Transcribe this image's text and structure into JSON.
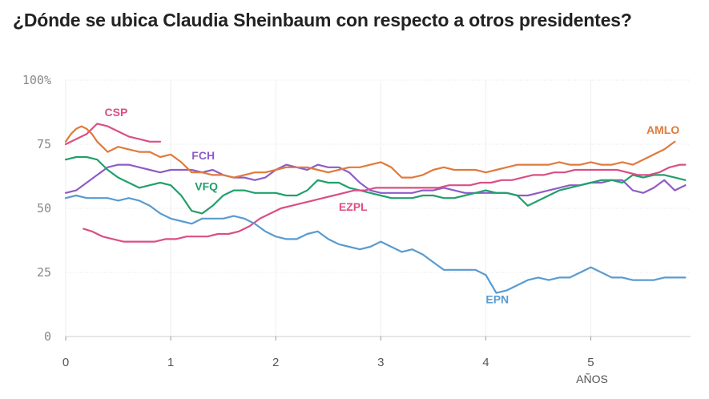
{
  "chart_data": {
    "type": "line",
    "title": "¿Dónde se ubica Claudia Sheinbaum con respecto a otros presidentes?",
    "xlabel": "AÑOS",
    "ylabel": "",
    "xlim": [
      0,
      5.95
    ],
    "ylim": [
      0,
      100
    ],
    "xticks": [
      0,
      1,
      2,
      3,
      4,
      5
    ],
    "yticks": [
      0,
      25,
      50,
      75,
      100
    ],
    "ytick_labels": [
      "0",
      "25",
      "50",
      "75",
      "100%"
    ],
    "series": [
      {
        "name": "FCH",
        "color": "#8e5cc6",
        "label_at": [
          1.2,
          69
        ],
        "x": [
          0,
          0.1,
          0.2,
          0.3,
          0.4,
          0.5,
          0.6,
          0.7,
          0.8,
          0.9,
          1.0,
          1.1,
          1.2,
          1.3,
          1.4,
          1.5,
          1.6,
          1.7,
          1.8,
          1.9,
          2.0,
          2.1,
          2.2,
          2.3,
          2.4,
          2.5,
          2.6,
          2.7,
          2.8,
          2.9,
          3.0,
          3.1,
          3.2,
          3.3,
          3.4,
          3.5,
          3.6,
          3.7,
          3.8,
          3.9,
          4.0,
          4.1,
          4.2,
          4.3,
          4.4,
          4.5,
          4.6,
          4.7,
          4.8,
          4.9,
          5.0,
          5.1,
          5.2,
          5.3,
          5.4,
          5.5,
          5.6,
          5.7,
          5.8,
          5.9
        ],
        "values": [
          56,
          57,
          60,
          63,
          66,
          67,
          67,
          66,
          65,
          64,
          65,
          65,
          65,
          64,
          65,
          63,
          62,
          62,
          61,
          62,
          65,
          67,
          66,
          65,
          67,
          66,
          66,
          64,
          60,
          57,
          56,
          56,
          56,
          56,
          57,
          57,
          58,
          57,
          56,
          56,
          56,
          56,
          56,
          55,
          55,
          56,
          57,
          58,
          59,
          59,
          60,
          60,
          61,
          61,
          57,
          56,
          58,
          61,
          57,
          59
        ]
      },
      {
        "name": "VFQ",
        "color": "#20a06a",
        "label_at": [
          1.23,
          57
        ],
        "x": [
          0,
          0.1,
          0.2,
          0.3,
          0.4,
          0.5,
          0.6,
          0.7,
          0.8,
          0.9,
          1.0,
          1.1,
          1.2,
          1.3,
          1.4,
          1.5,
          1.6,
          1.7,
          1.8,
          1.9,
          2.0,
          2.1,
          2.2,
          2.3,
          2.4,
          2.5,
          2.6,
          2.7,
          2.8,
          2.9,
          3.0,
          3.1,
          3.2,
          3.3,
          3.4,
          3.5,
          3.6,
          3.7,
          3.8,
          3.9,
          4.0,
          4.1,
          4.2,
          4.3,
          4.4,
          4.5,
          4.6,
          4.7,
          4.8,
          4.9,
          5.0,
          5.1,
          5.2,
          5.3,
          5.4,
          5.5,
          5.6,
          5.7,
          5.8,
          5.9
        ],
        "values": [
          69,
          70,
          70,
          69,
          65,
          62,
          60,
          58,
          59,
          60,
          59,
          55,
          49,
          48,
          51,
          55,
          57,
          57,
          56,
          56,
          56,
          55,
          55,
          57,
          61,
          60,
          60,
          58,
          57,
          56,
          55,
          54,
          54,
          54,
          55,
          55,
          54,
          54,
          55,
          56,
          57,
          56,
          56,
          55,
          51,
          53,
          55,
          57,
          58,
          59,
          60,
          61,
          61,
          60,
          63,
          62,
          63,
          63,
          62,
          61
        ]
      },
      {
        "name": "EZPL",
        "color": "#d94f84",
        "label_at": [
          2.6,
          49
        ],
        "x": [
          0.17,
          0.25,
          0.35,
          0.45,
          0.55,
          0.65,
          0.75,
          0.85,
          0.95,
          1.05,
          1.15,
          1.25,
          1.35,
          1.45,
          1.55,
          1.65,
          1.75,
          1.85,
          1.95,
          2.05,
          2.15,
          2.25,
          2.35,
          2.45,
          2.55,
          2.65,
          2.75,
          2.85,
          2.95,
          3.05,
          3.15,
          3.25,
          3.35,
          3.45,
          3.55,
          3.65,
          3.75,
          3.85,
          3.95,
          4.05,
          4.15,
          4.25,
          4.35,
          4.45,
          4.55,
          4.65,
          4.75,
          4.85,
          4.95,
          5.05,
          5.15,
          5.25,
          5.35,
          5.45,
          5.55,
          5.65,
          5.75,
          5.85,
          5.9
        ],
        "values": [
          42,
          41,
          39,
          38,
          37,
          37,
          37,
          37,
          38,
          38,
          39,
          39,
          39,
          40,
          40,
          41,
          43,
          46,
          48,
          50,
          51,
          52,
          53,
          54,
          55,
          56,
          57,
          57,
          58,
          58,
          58,
          58,
          58,
          58,
          58,
          59,
          59,
          59,
          60,
          60,
          61,
          61,
          62,
          63,
          63,
          64,
          64,
          65,
          65,
          65,
          65,
          65,
          64,
          63,
          63,
          64,
          66,
          67,
          67
        ]
      },
      {
        "name": "CSP",
        "color": "#d94f84",
        "label_at": [
          0.37,
          86
        ],
        "x": [
          0,
          0.1,
          0.2,
          0.3,
          0.4,
          0.5,
          0.6,
          0.7,
          0.8,
          0.9
        ],
        "values": [
          75,
          77,
          79,
          83,
          82,
          80,
          78,
          77,
          76,
          76
        ]
      },
      {
        "name": "AMLO",
        "color": "#e07a3b",
        "label_at": [
          5.53,
          79
        ],
        "x": [
          0,
          0.05,
          0.1,
          0.15,
          0.2,
          0.25,
          0.3,
          0.35,
          0.4,
          0.45,
          0.5,
          0.6,
          0.7,
          0.8,
          0.9,
          1.0,
          1.1,
          1.2,
          1.3,
          1.4,
          1.5,
          1.6,
          1.7,
          1.8,
          1.9,
          2.0,
          2.1,
          2.2,
          2.3,
          2.4,
          2.5,
          2.6,
          2.7,
          2.8,
          2.9,
          3.0,
          3.1,
          3.2,
          3.3,
          3.4,
          3.5,
          3.6,
          3.7,
          3.8,
          3.9,
          4.0,
          4.1,
          4.2,
          4.3,
          4.4,
          4.5,
          4.6,
          4.7,
          4.8,
          4.9,
          5.0,
          5.1,
          5.2,
          5.3,
          5.4,
          5.5,
          5.6,
          5.7,
          5.8
        ],
        "values": [
          76,
          79,
          81,
          82,
          81,
          79,
          76,
          74,
          72,
          73,
          74,
          73,
          72,
          72,
          70,
          71,
          68,
          64,
          64,
          63,
          63,
          62,
          63,
          64,
          64,
          65,
          66,
          66,
          66,
          65,
          64,
          65,
          66,
          66,
          67,
          68,
          66,
          62,
          62,
          63,
          65,
          66,
          65,
          65,
          65,
          64,
          65,
          66,
          67,
          67,
          67,
          67,
          68,
          67,
          67,
          68,
          67,
          67,
          68,
          67,
          69,
          71,
          73,
          76
        ]
      },
      {
        "name": "EPN",
        "color": "#5a9bd0",
        "label_at": [
          4.0,
          13
        ],
        "x": [
          0,
          0.1,
          0.2,
          0.3,
          0.4,
          0.5,
          0.6,
          0.7,
          0.8,
          0.9,
          1.0,
          1.1,
          1.2,
          1.3,
          1.4,
          1.5,
          1.6,
          1.7,
          1.8,
          1.9,
          2.0,
          2.1,
          2.2,
          2.3,
          2.4,
          2.5,
          2.6,
          2.7,
          2.8,
          2.9,
          3.0,
          3.1,
          3.2,
          3.3,
          3.4,
          3.5,
          3.6,
          3.7,
          3.8,
          3.9,
          4.0,
          4.1,
          4.2,
          4.3,
          4.4,
          4.5,
          4.6,
          4.7,
          4.8,
          4.9,
          5.0,
          5.1,
          5.2,
          5.3,
          5.4,
          5.5,
          5.6,
          5.7,
          5.8,
          5.9
        ],
        "values": [
          54,
          55,
          54,
          54,
          54,
          53,
          54,
          53,
          51,
          48,
          46,
          45,
          44,
          46,
          46,
          46,
          47,
          46,
          44,
          41,
          39,
          38,
          38,
          40,
          41,
          38,
          36,
          35,
          34,
          35,
          37,
          35,
          33,
          34,
          32,
          29,
          26,
          26,
          26,
          26,
          24,
          17,
          18,
          20,
          22,
          23,
          22,
          23,
          23,
          25,
          27,
          25,
          23,
          23,
          22,
          22,
          22,
          23,
          23,
          23
        ]
      }
    ]
  }
}
